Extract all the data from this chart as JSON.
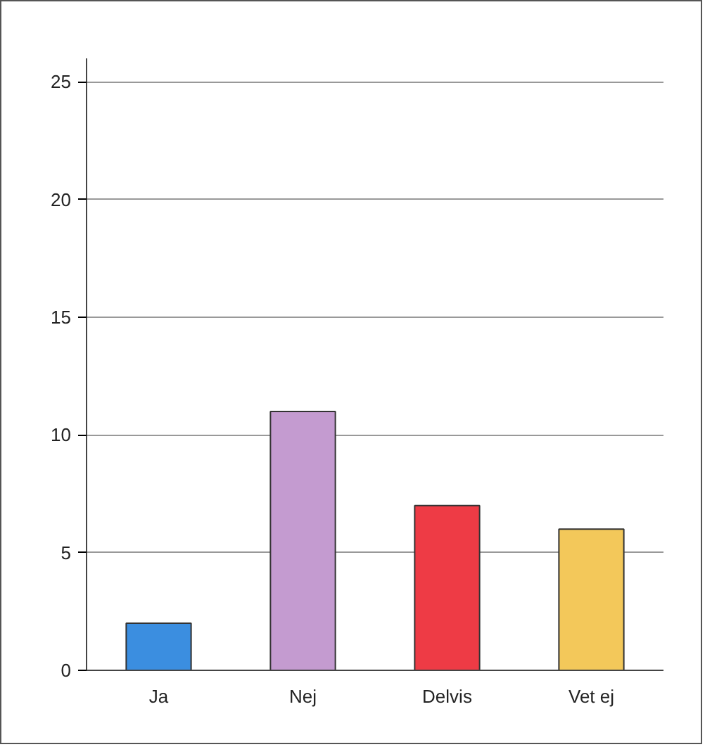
{
  "chart_data": {
    "type": "bar",
    "categories": [
      "Ja",
      "Nej",
      "Delvis",
      "Vet ej"
    ],
    "values": [
      2,
      11,
      7,
      6
    ],
    "colors": [
      "#3b8ee0",
      "#c49bd0",
      "#ee3b45",
      "#f3c85a"
    ],
    "ylim": [
      0,
      26
    ],
    "yticks": [
      0,
      5,
      10,
      15,
      20,
      25
    ],
    "grid": "y"
  }
}
